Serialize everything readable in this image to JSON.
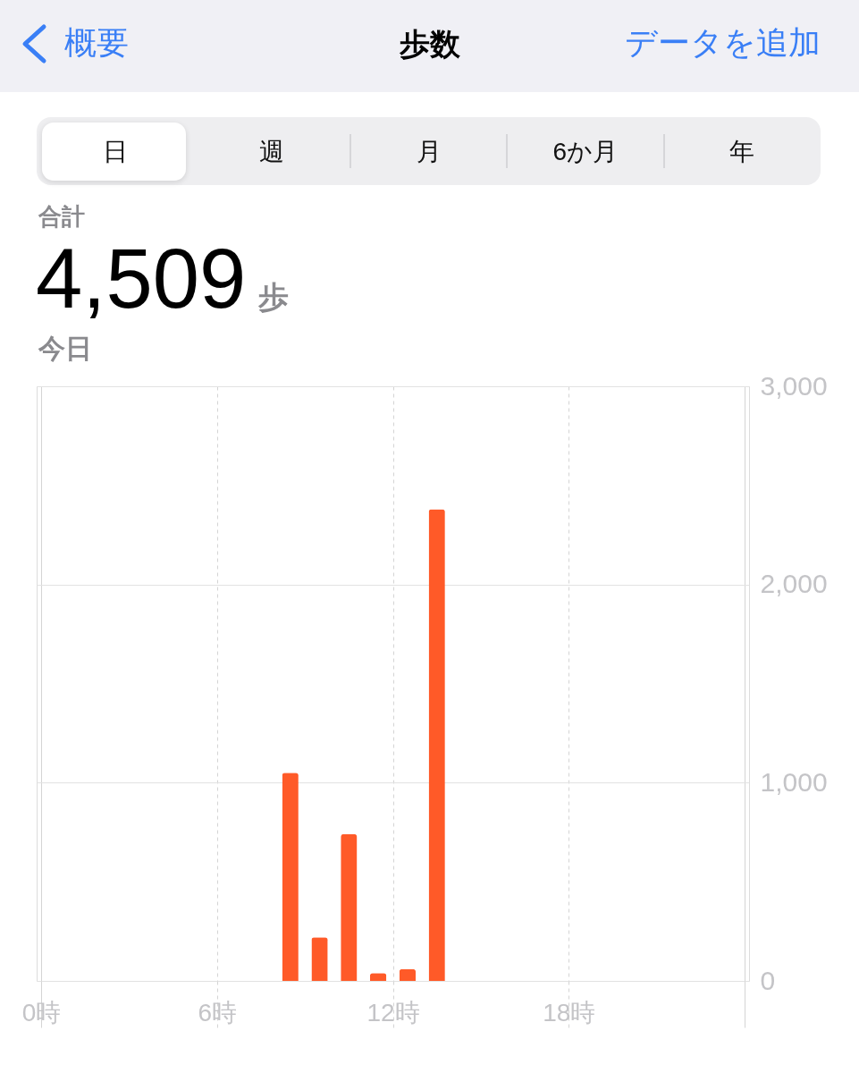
{
  "chart_data": {
    "type": "bar",
    "title": "歩数",
    "annotations": [
      "概要",
      "データを追加",
      "日",
      "週",
      "月",
      "6か月",
      "年",
      "合計",
      "4,509",
      "歩",
      "今日"
    ],
    "x": [
      8.5,
      9.5,
      10.5,
      11.5,
      12.5,
      13.5
    ],
    "values": [
      1050,
      220,
      740,
      40,
      60,
      2380
    ],
    "color": "#ff5a28",
    "xlim": [
      0,
      24
    ],
    "xticks": [
      {
        "value": 0,
        "label": "0時"
      },
      {
        "value": 6,
        "label": "6時"
      },
      {
        "value": 12,
        "label": "12時"
      },
      {
        "value": 18,
        "label": "18時"
      },
      {
        "value": 24,
        "label": null
      }
    ],
    "ylim": [
      0,
      3000
    ],
    "yticks": [
      0,
      {
        "value": 1000,
        "label": "1,000"
      },
      {
        "value": 2000,
        "label": "2,000"
      },
      {
        "value": 3000,
        "label": "3,000"
      }
    ],
    "grid": true
  }
}
